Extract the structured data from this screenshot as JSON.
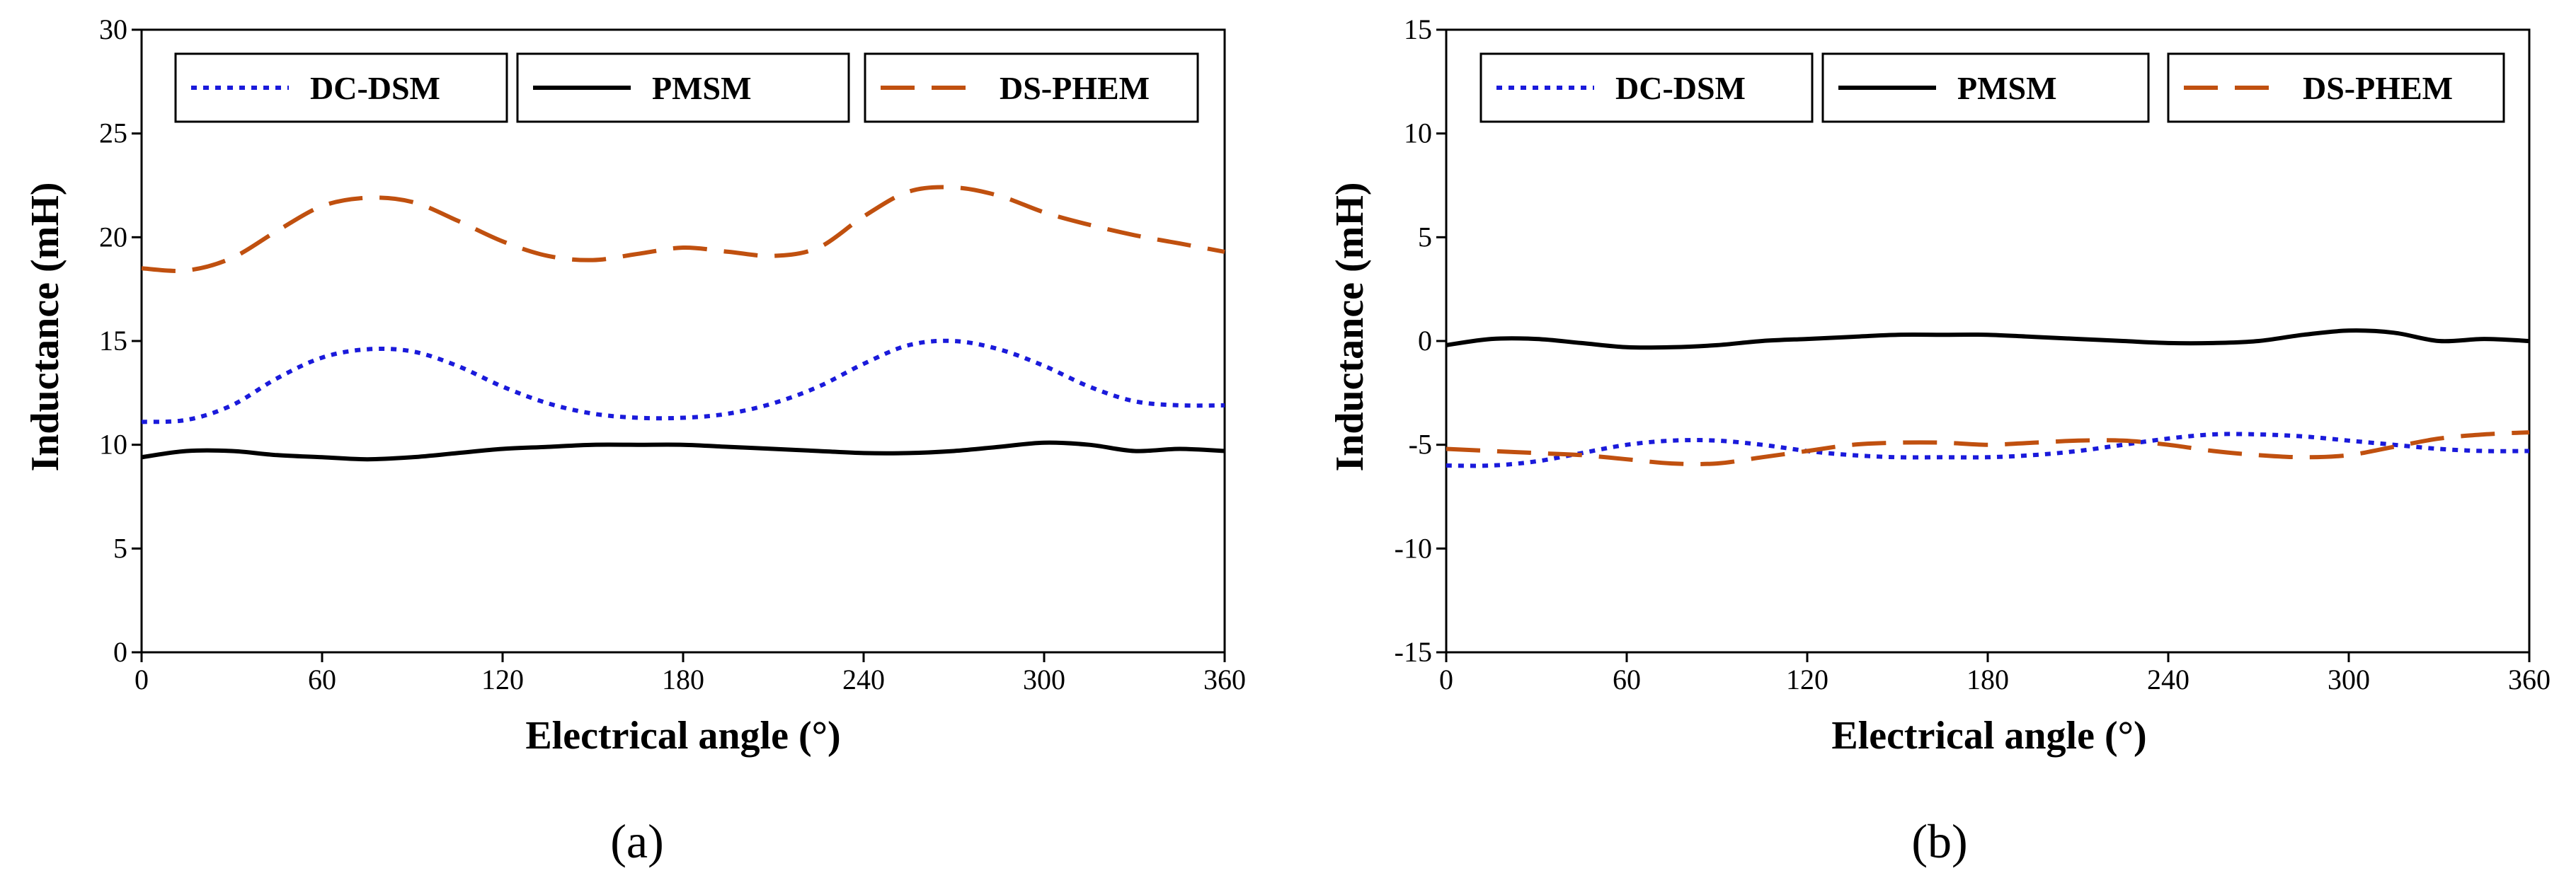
{
  "figure": {
    "panel_labels": [
      "(a)",
      "(b)"
    ]
  },
  "chart_data": [
    {
      "type": "line",
      "panel": "(a)",
      "title": "",
      "xlabel": "Electrical angle (°)",
      "ylabel": "Inductance (mH)",
      "xlim": [
        0,
        360
      ],
      "ylim": [
        0,
        30
      ],
      "xticks": [
        0,
        60,
        120,
        180,
        240,
        300,
        360
      ],
      "yticks": [
        0,
        5,
        10,
        15,
        20,
        25,
        30
      ],
      "grid": false,
      "legend": {
        "location": "top",
        "entries": [
          "DC-DSM",
          "PMSM",
          "DS-PHEM"
        ]
      },
      "x": [
        0,
        15,
        30,
        45,
        60,
        75,
        90,
        105,
        120,
        135,
        150,
        165,
        180,
        195,
        210,
        225,
        240,
        255,
        270,
        285,
        300,
        315,
        330,
        345,
        360
      ],
      "series": [
        {
          "name": "DC-DSM",
          "style": "dotted",
          "color": "#1a1adb",
          "values": [
            11.1,
            11.2,
            11.9,
            13.2,
            14.2,
            14.6,
            14.5,
            13.8,
            12.8,
            12.0,
            11.5,
            11.3,
            11.3,
            11.5,
            12.0,
            12.8,
            13.9,
            14.8,
            15.0,
            14.6,
            13.8,
            12.8,
            12.1,
            11.9,
            11.9
          ]
        },
        {
          "name": "PMSM",
          "style": "solid",
          "color": "#000000",
          "values": [
            9.4,
            9.7,
            9.7,
            9.5,
            9.4,
            9.3,
            9.4,
            9.6,
            9.8,
            9.9,
            10.0,
            10.0,
            10.0,
            9.9,
            9.8,
            9.7,
            9.6,
            9.6,
            9.7,
            9.9,
            10.1,
            10.0,
            9.7,
            9.8,
            9.7
          ]
        },
        {
          "name": "DS-PHEM",
          "style": "dashed",
          "color": "#c0500f",
          "values": [
            18.5,
            18.4,
            19.0,
            20.3,
            21.5,
            21.9,
            21.7,
            20.8,
            19.8,
            19.1,
            18.9,
            19.2,
            19.5,
            19.3,
            19.1,
            19.5,
            21.0,
            22.2,
            22.4,
            22.0,
            21.2,
            20.6,
            20.1,
            19.7,
            19.3
          ]
        }
      ]
    },
    {
      "type": "line",
      "panel": "(b)",
      "title": "",
      "xlabel": "Electrical angle (°)",
      "ylabel": "Inductance (mH)",
      "xlim": [
        0,
        360
      ],
      "ylim": [
        -15,
        15
      ],
      "xticks": [
        0,
        60,
        120,
        180,
        240,
        300,
        360
      ],
      "yticks": [
        -15,
        -10,
        -5,
        0,
        5,
        10,
        15
      ],
      "grid": false,
      "legend": {
        "location": "top",
        "entries": [
          "DC-DSM",
          "PMSM",
          "DS-PHEM"
        ]
      },
      "x": [
        0,
        15,
        30,
        45,
        60,
        75,
        90,
        105,
        120,
        135,
        150,
        165,
        180,
        195,
        210,
        225,
        240,
        255,
        270,
        285,
        300,
        315,
        330,
        345,
        360
      ],
      "series": [
        {
          "name": "DC-DSM",
          "style": "dotted",
          "color": "#1a1adb",
          "values": [
            -6.0,
            -6.0,
            -5.8,
            -5.4,
            -5.0,
            -4.8,
            -4.8,
            -5.0,
            -5.3,
            -5.5,
            -5.6,
            -5.6,
            -5.6,
            -5.5,
            -5.3,
            -5.0,
            -4.7,
            -4.5,
            -4.5,
            -4.6,
            -4.8,
            -5.0,
            -5.2,
            -5.3,
            -5.3
          ]
        },
        {
          "name": "PMSM",
          "style": "solid",
          "color": "#000000",
          "values": [
            -0.2,
            0.1,
            0.1,
            -0.1,
            -0.3,
            -0.3,
            -0.2,
            0.0,
            0.1,
            0.2,
            0.3,
            0.3,
            0.3,
            0.2,
            0.1,
            0.0,
            -0.1,
            -0.1,
            0.0,
            0.3,
            0.5,
            0.4,
            0.0,
            0.1,
            0.0
          ]
        },
        {
          "name": "DS-PHEM",
          "style": "dashed",
          "color": "#c0500f",
          "values": [
            -5.2,
            -5.3,
            -5.4,
            -5.5,
            -5.7,
            -5.9,
            -5.9,
            -5.6,
            -5.3,
            -5.0,
            -4.9,
            -4.9,
            -5.0,
            -4.9,
            -4.8,
            -4.8,
            -5.0,
            -5.3,
            -5.5,
            -5.6,
            -5.5,
            -5.1,
            -4.7,
            -4.5,
            -4.4
          ]
        }
      ]
    }
  ]
}
